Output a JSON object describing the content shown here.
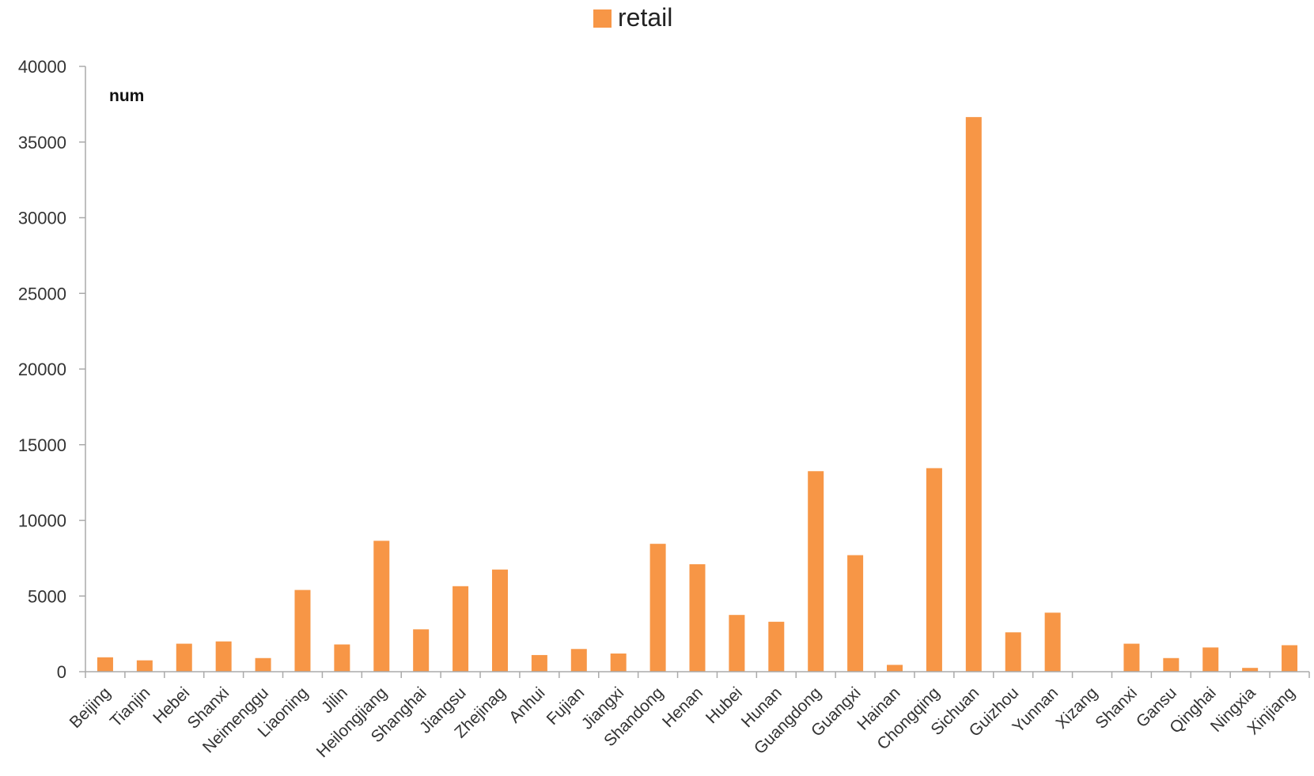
{
  "chart_data": {
    "type": "bar",
    "legend": {
      "position": "top-center",
      "entries": [
        "retail"
      ]
    },
    "ylabel": "num",
    "ylim": [
      0,
      40000
    ],
    "yticks": [
      0,
      5000,
      10000,
      15000,
      20000,
      25000,
      30000,
      35000,
      40000
    ],
    "grid": false,
    "categories": [
      "Beijing",
      "Tianjin",
      "Hebei",
      "Shanxi",
      "Neimenggu",
      "Liaoning",
      "Jilin",
      "Heilongjiang",
      "Shanghai",
      "Jiangsu",
      "Zhejinag",
      "Anhui",
      "Fujian",
      "Jiangxi",
      "Shandong",
      "Henan",
      "Hubei",
      "Hunan",
      "Guangdong",
      "Guangxi",
      "Hainan",
      "Chongqing",
      "Sichuan",
      "Guizhou",
      "Yunnan",
      "Xizang",
      "Shanxi",
      "Gansu",
      "Qinghai",
      "Ningxia",
      "Xinjiang"
    ],
    "series": [
      {
        "name": "retail",
        "color": "#f79646",
        "values": [
          950,
          750,
          1850,
          2000,
          900,
          5400,
          1800,
          8650,
          2800,
          5650,
          6750,
          1100,
          1500,
          1200,
          8450,
          7100,
          3750,
          3300,
          13250,
          7700,
          450,
          13450,
          36650,
          2600,
          3900,
          0,
          1850,
          900,
          1600,
          250,
          1750
        ]
      }
    ]
  }
}
